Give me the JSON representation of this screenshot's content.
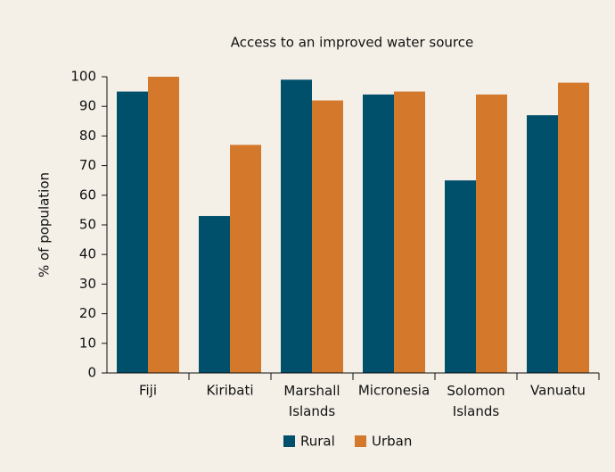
{
  "chart_data": {
    "type": "bar",
    "title": "Access to an improved water source",
    "y_label": "% of population",
    "categories": [
      "Fiji",
      "Kiribati",
      "Marshall Islands",
      "Micronesia",
      "Solomon Islands",
      "Vanuatu"
    ],
    "series": [
      {
        "name": "Rural",
        "color": "#004f6b",
        "values": [
          95,
          53,
          99,
          94,
          65,
          87
        ]
      },
      {
        "name": "Urban",
        "color": "#d4782b",
        "values": [
          100,
          77,
          92,
          95,
          94,
          98
        ]
      }
    ],
    "ylim": [
      0,
      100
    ],
    "yticks": [
      0,
      10,
      20,
      30,
      40,
      50,
      60,
      70,
      80,
      90,
      100
    ],
    "grid": false,
    "legend": "bottom"
  }
}
